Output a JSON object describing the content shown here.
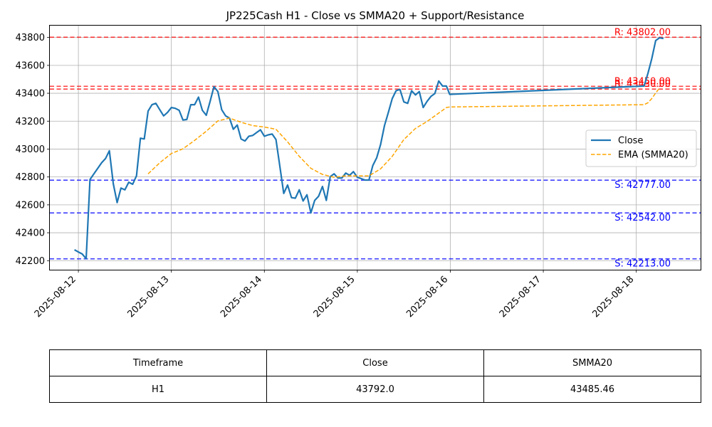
{
  "chart_data": {
    "type": "line",
    "title": "JP225Cash H1 - Close vs SMMA20 + Support/Resistance",
    "xlabel": "",
    "ylabel": "",
    "x_ticks": [
      "2025-08-12",
      "2025-08-13",
      "2025-08-14",
      "2025-08-15",
      "2025-08-16",
      "2025-08-17",
      "2025-08-18"
    ],
    "xlim": [
      "2025-08-11T16:38",
      "2025-08-18T16:36"
    ],
    "ylim": [
      42135,
      43885
    ],
    "y_ticks": [
      42200,
      42400,
      42600,
      42800,
      43000,
      43200,
      43400,
      43600,
      43800
    ],
    "grid": true,
    "legend_position": "center-right",
    "series": [
      {
        "name": "Close",
        "color": "#1f77b4",
        "style": "solid",
        "points": [
          [
            "2025-08-11T23:00",
            42278
          ],
          [
            "2025-08-12T00:00",
            42262
          ],
          [
            "2025-08-12T01:00",
            42248
          ],
          [
            "2025-08-12T02:00",
            42214
          ],
          [
            "2025-08-12T03:00",
            42782
          ],
          [
            "2025-08-12T04:00",
            42822
          ],
          [
            "2025-08-12T05:00",
            42862
          ],
          [
            "2025-08-12T06:00",
            42902
          ],
          [
            "2025-08-12T07:00",
            42932
          ],
          [
            "2025-08-12T08:00",
            42988
          ],
          [
            "2025-08-12T09:00",
            42752
          ],
          [
            "2025-08-12T10:00",
            42616
          ],
          [
            "2025-08-12T11:00",
            42720
          ],
          [
            "2025-08-12T12:00",
            42708
          ],
          [
            "2025-08-12T13:00",
            42762
          ],
          [
            "2025-08-12T14:00",
            42748
          ],
          [
            "2025-08-12T15:00",
            42808
          ],
          [
            "2025-08-12T16:00",
            43078
          ],
          [
            "2025-08-12T17:00",
            43072
          ],
          [
            "2025-08-12T18:00",
            43272
          ],
          [
            "2025-08-12T19:00",
            43318
          ],
          [
            "2025-08-12T20:00",
            43328
          ],
          [
            "2025-08-12T21:00",
            43282
          ],
          [
            "2025-08-12T22:00",
            43238
          ],
          [
            "2025-08-12T23:00",
            43262
          ],
          [
            "2025-08-13T00:00",
            43298
          ],
          [
            "2025-08-13T01:00",
            43292
          ],
          [
            "2025-08-13T02:00",
            43278
          ],
          [
            "2025-08-13T03:00",
            43208
          ],
          [
            "2025-08-13T04:00",
            43212
          ],
          [
            "2025-08-13T05:00",
            43318
          ],
          [
            "2025-08-13T06:00",
            43318
          ],
          [
            "2025-08-13T07:00",
            43372
          ],
          [
            "2025-08-13T08:00",
            43278
          ],
          [
            "2025-08-13T09:00",
            43242
          ],
          [
            "2025-08-13T10:00",
            43342
          ],
          [
            "2025-08-13T11:00",
            43448
          ],
          [
            "2025-08-13T12:00",
            43412
          ],
          [
            "2025-08-13T13:00",
            43282
          ],
          [
            "2025-08-13T14:00",
            43238
          ],
          [
            "2025-08-13T15:00",
            43222
          ],
          [
            "2025-08-13T16:00",
            43142
          ],
          [
            "2025-08-13T17:00",
            43172
          ],
          [
            "2025-08-13T18:00",
            43072
          ],
          [
            "2025-08-13T19:00",
            43058
          ],
          [
            "2025-08-13T20:00",
            43092
          ],
          [
            "2025-08-13T21:00",
            43098
          ],
          [
            "2025-08-13T22:00",
            43118
          ],
          [
            "2025-08-13T23:00",
            43138
          ],
          [
            "2025-08-14T00:00",
            43092
          ],
          [
            "2025-08-14T01:00",
            43102
          ],
          [
            "2025-08-14T02:00",
            43108
          ],
          [
            "2025-08-14T03:00",
            43068
          ],
          [
            "2025-08-14T04:00",
            42878
          ],
          [
            "2025-08-14T05:00",
            42682
          ],
          [
            "2025-08-14T06:00",
            42742
          ],
          [
            "2025-08-14T07:00",
            42652
          ],
          [
            "2025-08-14T08:00",
            42648
          ],
          [
            "2025-08-14T09:00",
            42708
          ],
          [
            "2025-08-14T10:00",
            42628
          ],
          [
            "2025-08-14T11:00",
            42672
          ],
          [
            "2025-08-14T12:00",
            42542
          ],
          [
            "2025-08-14T13:00",
            42632
          ],
          [
            "2025-08-14T14:00",
            42662
          ],
          [
            "2025-08-14T15:00",
            42732
          ],
          [
            "2025-08-14T16:00",
            42632
          ],
          [
            "2025-08-14T17:00",
            42802
          ],
          [
            "2025-08-14T18:00",
            42822
          ],
          [
            "2025-08-14T19:00",
            42792
          ],
          [
            "2025-08-14T20:00",
            42792
          ],
          [
            "2025-08-14T21:00",
            42828
          ],
          [
            "2025-08-14T22:00",
            42812
          ],
          [
            "2025-08-14T23:00",
            42838
          ],
          [
            "2025-08-15T00:00",
            42798
          ],
          [
            "2025-08-15T01:00",
            42788
          ],
          [
            "2025-08-15T02:00",
            42778
          ],
          [
            "2025-08-15T03:00",
            42778
          ],
          [
            "2025-08-15T04:00",
            42882
          ],
          [
            "2025-08-15T05:00",
            42938
          ],
          [
            "2025-08-15T06:00",
            43032
          ],
          [
            "2025-08-15T07:00",
            43168
          ],
          [
            "2025-08-15T08:00",
            43262
          ],
          [
            "2025-08-15T09:00",
            43362
          ],
          [
            "2025-08-15T10:00",
            43418
          ],
          [
            "2025-08-15T11:00",
            43428
          ],
          [
            "2025-08-15T12:00",
            43338
          ],
          [
            "2025-08-15T13:00",
            43328
          ],
          [
            "2025-08-15T14:00",
            43418
          ],
          [
            "2025-08-15T15:00",
            43388
          ],
          [
            "2025-08-15T16:00",
            43412
          ],
          [
            "2025-08-15T17:00",
            43298
          ],
          [
            "2025-08-15T18:00",
            43342
          ],
          [
            "2025-08-15T19:00",
            43378
          ],
          [
            "2025-08-15T20:00",
            43398
          ],
          [
            "2025-08-15T21:00",
            43488
          ],
          [
            "2025-08-15T22:00",
            43452
          ],
          [
            "2025-08-15T23:00",
            43452
          ],
          [
            "2025-08-15T23:50",
            43392
          ],
          [
            "2025-08-18T02:00",
            43452
          ],
          [
            "2025-08-18T03:00",
            43542
          ],
          [
            "2025-08-18T04:00",
            43648
          ],
          [
            "2025-08-18T05:00",
            43778
          ],
          [
            "2025-08-18T06:00",
            43798
          ],
          [
            "2025-08-18T07:00",
            43792
          ]
        ]
      },
      {
        "name": "EMA (SMMA20)",
        "color": "#ffa500",
        "style": "dashed",
        "points": [
          [
            "2025-08-12T18:00",
            42822
          ],
          [
            "2025-08-12T21:00",
            42902
          ],
          [
            "2025-08-13T00:00",
            42968
          ],
          [
            "2025-08-13T03:00",
            43002
          ],
          [
            "2025-08-13T06:00",
            43062
          ],
          [
            "2025-08-13T09:00",
            43128
          ],
          [
            "2025-08-13T12:00",
            43202
          ],
          [
            "2025-08-13T15:00",
            43222
          ],
          [
            "2025-08-13T18:00",
            43192
          ],
          [
            "2025-08-13T21:00",
            43168
          ],
          [
            "2025-08-14T00:00",
            43158
          ],
          [
            "2025-08-14T03:00",
            43142
          ],
          [
            "2025-08-14T06:00",
            43052
          ],
          [
            "2025-08-14T09:00",
            42948
          ],
          [
            "2025-08-14T12:00",
            42862
          ],
          [
            "2025-08-14T15:00",
            42818
          ],
          [
            "2025-08-14T18:00",
            42798
          ],
          [
            "2025-08-14T21:00",
            42808
          ],
          [
            "2025-08-15T00:00",
            42808
          ],
          [
            "2025-08-15T03:00",
            42808
          ],
          [
            "2025-08-15T06:00",
            42858
          ],
          [
            "2025-08-15T09:00",
            42948
          ],
          [
            "2025-08-15T12:00",
            43068
          ],
          [
            "2025-08-15T15:00",
            43148
          ],
          [
            "2025-08-15T18:00",
            43198
          ],
          [
            "2025-08-15T21:00",
            43258
          ],
          [
            "2025-08-15T23:00",
            43298
          ],
          [
            "2025-08-15T23:50",
            43302
          ],
          [
            "2025-08-18T02:00",
            43318
          ],
          [
            "2025-08-18T03:00",
            43332
          ],
          [
            "2025-08-18T04:00",
            43362
          ],
          [
            "2025-08-18T05:00",
            43402
          ],
          [
            "2025-08-18T06:00",
            43438
          ]
        ]
      }
    ],
    "levels": [
      {
        "type": "resistance",
        "value": 43802,
        "label": "R: 43802.00",
        "color": "#ff0000"
      },
      {
        "type": "resistance",
        "value": 43450,
        "label": "R: 43450.00",
        "color": "#ff0000"
      },
      {
        "type": "resistance",
        "value": 43430,
        "label": "R: 43430.00",
        "color": "#ff0000"
      },
      {
        "type": "support",
        "value": 42777,
        "label": "S: 42777.00",
        "color": "#0000ff"
      },
      {
        "type": "support",
        "value": 42542,
        "label": "S: 42542.00",
        "color": "#0000ff"
      },
      {
        "type": "support",
        "value": 42213,
        "label": "S: 42213.00",
        "color": "#0000ff"
      }
    ]
  },
  "table": {
    "headers": [
      "Timeframe",
      "Close",
      "SMMA20"
    ],
    "rows": [
      [
        "H1",
        "43792.0",
        "43485.46"
      ]
    ]
  }
}
